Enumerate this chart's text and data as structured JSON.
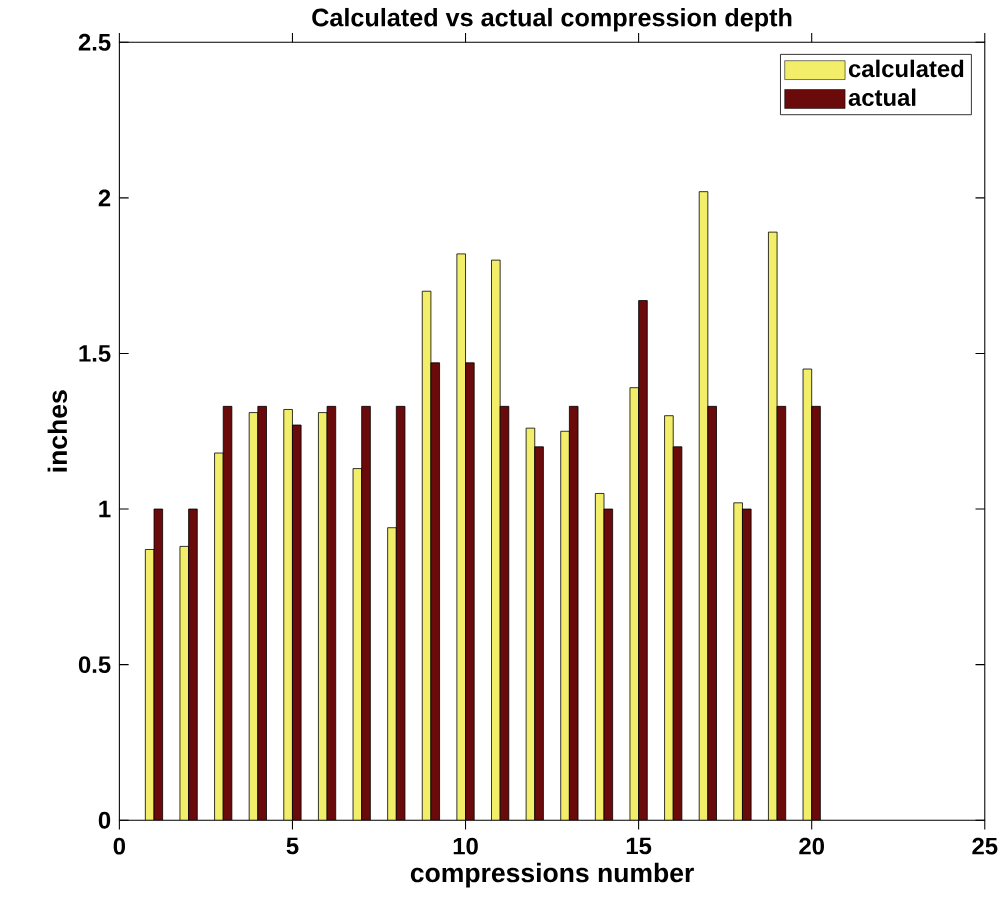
{
  "chart_data": {
    "type": "bar",
    "title": "Calculated vs actual compression depth",
    "xlabel": "compressions number",
    "ylabel": "inches",
    "x": [
      1,
      2,
      3,
      4,
      5,
      6,
      7,
      8,
      9,
      10,
      11,
      12,
      13,
      14,
      15,
      16,
      17,
      18,
      19,
      20
    ],
    "series": [
      {
        "name": "calculated",
        "color": "#f2ee6a",
        "values": [
          0.87,
          0.88,
          1.18,
          1.31,
          1.32,
          1.31,
          1.13,
          0.94,
          1.7,
          1.82,
          1.8,
          1.26,
          1.25,
          1.05,
          1.39,
          1.3,
          2.02,
          1.02,
          1.89,
          1.45
        ]
      },
      {
        "name": "actual",
        "color": "#6b0a0a",
        "values": [
          1.0,
          1.0,
          1.33,
          1.33,
          1.27,
          1.33,
          1.33,
          1.33,
          1.47,
          1.47,
          1.33,
          1.2,
          1.33,
          1.0,
          1.67,
          1.2,
          1.33,
          1.0,
          1.33,
          1.33
        ]
      }
    ],
    "xlim": [
      0,
      25
    ],
    "xticks": [
      0,
      5,
      10,
      15,
      20,
      25
    ],
    "ylim": [
      0,
      2.5
    ],
    "yticks": [
      0,
      0.5,
      1,
      1.5,
      2,
      2.5
    ],
    "grid": false,
    "legend": "top right"
  }
}
